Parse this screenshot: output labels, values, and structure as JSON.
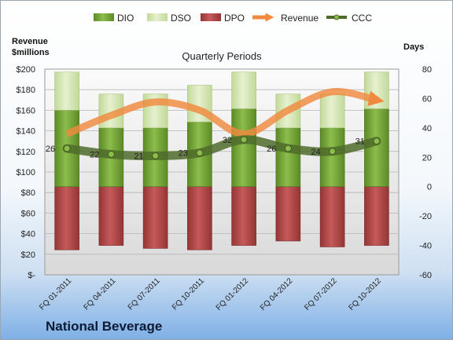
{
  "chart_data": {
    "type": "bar",
    "title": "Quarterly Periods",
    "company": "National Beverage",
    "left_axis_label": [
      "Revenue",
      "$millions"
    ],
    "right_axis_label": "Days",
    "left_ticks": [
      "$-",
      "$20",
      "$40",
      "$60",
      "$80",
      "$100",
      "$120",
      "$140",
      "$160",
      "$180",
      "$200"
    ],
    "right_ticks": [
      "-60",
      "-40",
      "-20",
      "0",
      "20",
      "40",
      "60",
      "80"
    ],
    "left_ylim": [
      0,
      200
    ],
    "right_ylim": [
      -60,
      80
    ],
    "categories": [
      "FQ 01-2011",
      "FQ 04-2011",
      "FQ 07-2011",
      "FQ 10-2011",
      "FQ 01-2012",
      "FQ 04-2012",
      "FQ 07-2012",
      "FQ 10-2012"
    ],
    "legend": [
      "DIO",
      "DSO",
      "DPO",
      "Revenue",
      "CCC"
    ],
    "series": [
      {
        "name": "DIO",
        "axis": "right",
        "color": "#77a838",
        "values": [
          52,
          40,
          40,
          44,
          53,
          40,
          40,
          53
        ]
      },
      {
        "name": "DSO",
        "axis": "right",
        "color": "#d6e7b3",
        "values": [
          26,
          23,
          23,
          25,
          25,
          23,
          23,
          25
        ]
      },
      {
        "name": "DPO",
        "axis": "right",
        "color": "#b54848",
        "values": [
          -43,
          -40,
          -42,
          -43,
          -40,
          -37,
          -41,
          -40
        ]
      },
      {
        "name": "Revenue",
        "axis": "left",
        "color": "#f08a3e",
        "values": [
          137,
          155,
          168,
          160,
          137,
          160,
          178,
          170
        ]
      },
      {
        "name": "CCC",
        "axis": "right",
        "color": "#4f6b2a",
        "values": [
          26,
          22,
          21,
          23,
          32,
          26,
          24,
          31
        ]
      }
    ],
    "ccc_labels": [
      "26",
      "22",
      "21",
      "23",
      "32",
      "26",
      "24",
      "31"
    ],
    "grid": true,
    "legend_position": "top"
  }
}
